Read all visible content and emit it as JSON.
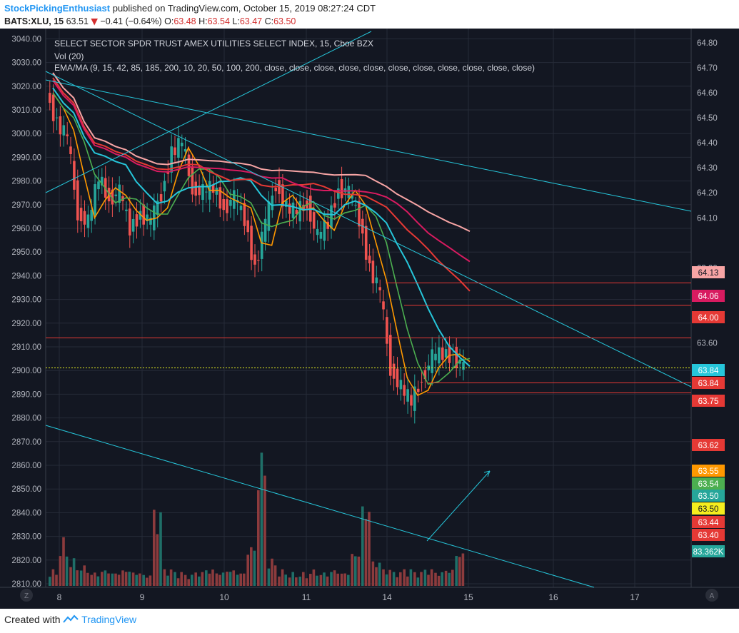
{
  "header": {
    "username": "StockPickingEnthusiast",
    "published_text": "published on TradingView.com, October 15, 2019 08:27:24 CDT",
    "symbol": "BATS:XLU, 15",
    "last": "63.51",
    "change_arrow": "▼",
    "change": "−0.41 (−0.64%)",
    "o_label": "O:",
    "o_value": "63.48",
    "h_label": "H:",
    "h_value": "63.54",
    "l_label": "L:",
    "l_value": "63.47",
    "c_label": "C:",
    "c_value": "63.50"
  },
  "legend": {
    "line1": "SELECT SECTOR SPDR TRUST AMEX UTILITIES SELECT INDEX, 15, Cboe BZX",
    "line2": "Vol (20)",
    "line3": "EMA/MA (9, 15, 42, 85, 185, 200, 10, 20, 50, 100, 200, close, close, close, close, close, close, close, close, close, close, close)"
  },
  "footer": {
    "created_with": "Created with",
    "brand": "TradingView"
  },
  "colors": {
    "background": "#131722",
    "grid": "#262b38",
    "up": "#26a69a",
    "down": "#ef5350",
    "ma_orange": "#ff9800",
    "ma_green": "#4caf50",
    "ma_cyan": "#26c6da",
    "ma_red": "#e53935",
    "ma_magenta": "#d81b60",
    "ma_pink": "#f8a5a5",
    "trendline": "#26c6da",
    "level": "#e53935",
    "yellow_line": "#e6ee23"
  },
  "chart_data": {
    "type": "candlestick",
    "x_tick_labels": [
      "8",
      "9",
      "10",
      "11",
      "14",
      "15",
      "16",
      "17"
    ],
    "left_axis_ticks": [
      3040,
      3030,
      3020,
      3010,
      3000,
      2990,
      2980,
      2970,
      2960,
      2950,
      2940,
      2930,
      2920,
      2910,
      2900,
      2890,
      2880,
      2870,
      2860,
      2850,
      2840,
      2830,
      2820,
      2810
    ],
    "left_axis_range": [
      2810,
      3040
    ],
    "right_axis_ticks": [
      "64.80",
      "64.70",
      "64.60",
      "64.50",
      "64.40",
      "64.30",
      "64.20",
      "64.10",
      "63.90",
      "63.70",
      "63.60"
    ],
    "right_axis_range": [
      63.3,
      64.8
    ],
    "right_axis_badges": [
      {
        "label": "64.13",
        "color": "#f8a5a5"
      },
      {
        "label": "64.06",
        "color": "#d81b60"
      },
      {
        "label": "64.00",
        "color": "#e53935"
      },
      {
        "label": "63.84",
        "color": "#26c6da"
      },
      {
        "label": "63.84",
        "color": "#e53935"
      },
      {
        "label": "63.75",
        "color": "#e53935"
      },
      {
        "label": "63.62",
        "color": "#e53935"
      },
      {
        "label": "63.55",
        "color": "#ff9800"
      },
      {
        "label": "63.54",
        "color": "#4caf50"
      },
      {
        "label": "63.50",
        "color": "#26a69a"
      },
      {
        "label": "63.50",
        "color": "#f5ee1e"
      },
      {
        "label": "63.44",
        "color": "#e53935"
      },
      {
        "label": "63.40",
        "color": "#e53935"
      },
      {
        "label": "83.362K",
        "color": "#26a69a"
      }
    ],
    "close_path": [
      [
        0,
        64.6
      ],
      [
        1,
        64.48
      ],
      [
        2,
        64.42
      ],
      [
        3,
        64.12
      ],
      [
        4,
        64.08
      ],
      [
        5,
        64.26
      ],
      [
        6,
        64.18
      ],
      [
        7,
        64.2
      ],
      [
        8,
        64.06
      ],
      [
        9,
        64.12
      ],
      [
        10,
        64.08
      ],
      [
        11,
        64.2
      ],
      [
        12,
        64.36
      ],
      [
        13,
        64.4
      ],
      [
        14,
        64.22
      ],
      [
        15,
        64.2
      ],
      [
        16,
        64.22
      ],
      [
        17,
        64.14
      ],
      [
        18,
        64.18
      ],
      [
        19,
        64.1
      ],
      [
        20,
        63.9
      ],
      [
        21,
        64.08
      ],
      [
        22,
        64.24
      ],
      [
        23,
        64.14
      ],
      [
        24,
        64.12
      ],
      [
        25,
        64.16
      ],
      [
        26,
        64.02
      ],
      [
        27,
        64.08
      ],
      [
        28,
        64.22
      ],
      [
        29,
        64.2
      ],
      [
        30,
        64.1
      ],
      [
        31,
        63.9
      ],
      [
        32,
        63.8
      ],
      [
        33,
        63.5
      ],
      [
        34,
        63.42
      ],
      [
        35,
        63.36
      ],
      [
        36,
        63.46
      ],
      [
        37,
        63.54
      ],
      [
        38,
        63.56
      ],
      [
        39,
        63.55
      ],
      [
        40,
        63.5
      ]
    ],
    "volume_shape": [
      0.12,
      0.35,
      0.2,
      0.15,
      0.1,
      0.12,
      0.1,
      0.12,
      0.1,
      0.08,
      0.55,
      0.12,
      0.1,
      0.08,
      0.1,
      0.12,
      0.1,
      0.12,
      0.1,
      0.3,
      1.0,
      0.2,
      0.12,
      0.1,
      0.1,
      0.12,
      0.1,
      0.12,
      0.1,
      0.25,
      0.6,
      0.18,
      0.12,
      0.1,
      0.12,
      0.1,
      0.12,
      0.1,
      0.12,
      0.25
    ]
  }
}
